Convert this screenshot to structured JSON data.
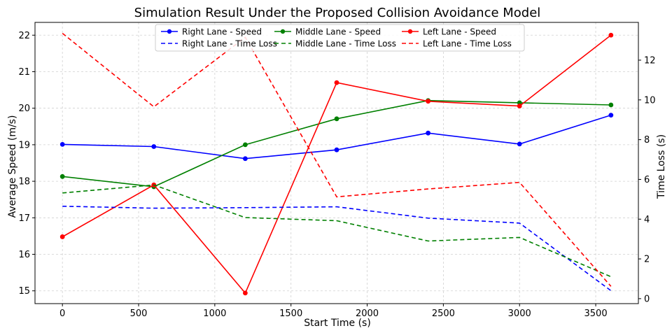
{
  "chart_data": {
    "type": "line",
    "title": "Simulation Result Under the Proposed Collision Avoidance Model",
    "xlabel": "Start Time (s)",
    "ylabel": "Average Speed (m/s)",
    "y2label": "Time Loss (s)",
    "xlim": [
      -180,
      3780
    ],
    "ylim": [
      14.65,
      22.35
    ],
    "y2lim": [
      -0.25,
      13.9
    ],
    "xticks": [
      0,
      500,
      1000,
      1500,
      2000,
      2500,
      3000,
      3500
    ],
    "yticks": [
      15,
      16,
      17,
      18,
      19,
      20,
      21,
      22
    ],
    "y2ticks": [
      0,
      2,
      4,
      6,
      8,
      10,
      12
    ],
    "legend_position": "top-center",
    "x": [
      0,
      600,
      1200,
      1800,
      2400,
      3000,
      3600
    ],
    "series": [
      {
        "name": "Right Lane - Speed",
        "axis": "left",
        "style": "solid",
        "markers": true,
        "color": "#0000ff",
        "values": [
          19.01,
          18.95,
          18.62,
          18.86,
          19.32,
          19.02,
          19.81
        ]
      },
      {
        "name": "Middle Lane - Speed",
        "axis": "left",
        "style": "solid",
        "markers": true,
        "color": "#008000",
        "values": [
          18.13,
          17.85,
          19.0,
          19.71,
          20.21,
          20.15,
          20.09
        ]
      },
      {
        "name": "Left Lane - Speed",
        "axis": "left",
        "style": "solid",
        "markers": true,
        "color": "#ff0000",
        "values": [
          16.48,
          17.9,
          14.94,
          20.7,
          20.19,
          20.06,
          22.0
        ]
      },
      {
        "name": "Right Lane - Time Loss",
        "axis": "right",
        "style": "dashed",
        "markers": false,
        "color": "#0000ff",
        "values": [
          4.65,
          4.55,
          4.58,
          4.62,
          4.05,
          3.8,
          0.4
        ]
      },
      {
        "name": "Middle Lane - Time Loss",
        "axis": "right",
        "style": "dashed",
        "markers": false,
        "color": "#008000",
        "values": [
          5.32,
          5.72,
          4.08,
          3.92,
          2.9,
          3.08,
          1.1
        ]
      },
      {
        "name": "Left Lane - Time Loss",
        "axis": "right",
        "style": "dashed",
        "markers": false,
        "color": "#ff0000",
        "values": [
          13.35,
          9.65,
          13.15,
          5.12,
          5.52,
          5.85,
          0.62
        ]
      }
    ]
  }
}
